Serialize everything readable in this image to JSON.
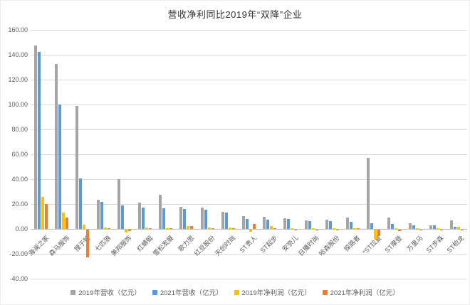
{
  "chart_data": {
    "type": "bar",
    "title": "营收净利同比2019年“双降”企业",
    "categories": [
      "海澜之家",
      "森马服饰",
      "搜于特",
      "七匹狼",
      "美邦服饰",
      "红蜻蜓",
      "雪松发展",
      "歌力思",
      "红豆股份",
      "天创时尚",
      "ST贵人",
      "ST起步",
      "安奈儿",
      "日播时尚",
      "哈森股份",
      "探路者",
      "*ST拉夏",
      "ST摩登",
      "万里马",
      "ST步森",
      "ST柏龙"
    ],
    "series": [
      {
        "name": "2019年营收（亿元）",
        "color": "#a5a5a5",
        "values": [
          147.6,
          132.8,
          99.0,
          23.4,
          39.8,
          21.3,
          27.4,
          17.7,
          17.1,
          13.9,
          10.4,
          9.7,
          8.6,
          7.0,
          7.6,
          9.1,
          57.1,
          9.1,
          4.4,
          3.0,
          6.9
        ]
      },
      {
        "name": "2021年营收（亿元）",
        "color": "#5b9bd5",
        "values": [
          142.4,
          100.1,
          40.5,
          21.7,
          18.7,
          17.3,
          16.7,
          16.2,
          15.6,
          13.3,
          8.0,
          7.4,
          8.0,
          6.3,
          6.1,
          5.5,
          4.4,
          3.8,
          2.7,
          2.9,
          1.5
        ]
      },
      {
        "name": "2019年净利润（亿元）",
        "color": "#ffc000",
        "values": [
          25.9,
          13.0,
          3.2,
          1.3,
          -2.3,
          1.2,
          0.4,
          2.5,
          0.9,
          1.4,
          -1.7,
          2.1,
          0.3,
          0.3,
          0.1,
          0.6,
          -7.7,
          0.3,
          0.2,
          0.2,
          1.5
        ]
      },
      {
        "name": "2021年净利润（亿元）",
        "color": "#ed7d31",
        "values": [
          20.2,
          9.1,
          -22.3,
          0.6,
          -1.1,
          0.5,
          0.2,
          2.3,
          0.6,
          0.3,
          3.8,
          0.1,
          -0.2,
          -0.2,
          -0.3,
          0.4,
          -5.0,
          -1.1,
          -0.5,
          -0.5,
          -0.3
        ]
      }
    ],
    "ylim": [
      -40,
      160
    ],
    "yticks": [
      160,
      140,
      120,
      100,
      80,
      60,
      40,
      20,
      0,
      -20,
      -40
    ],
    "ytick_labels": [
      "160.00",
      "140.00",
      "120.00",
      "100.00",
      "80.00",
      "60.00",
      "40.00",
      "20.00",
      "0.00",
      "-20.00",
      "-40.00"
    ],
    "grid": true,
    "legend_position": "bottom",
    "xlabel": "",
    "ylabel": ""
  },
  "colors": {
    "gridline": "#d9d9d9",
    "zero_axis": "#bfbfbf",
    "tick_text": "#595959",
    "title_text": "#333333",
    "background": "#ffffff"
  }
}
